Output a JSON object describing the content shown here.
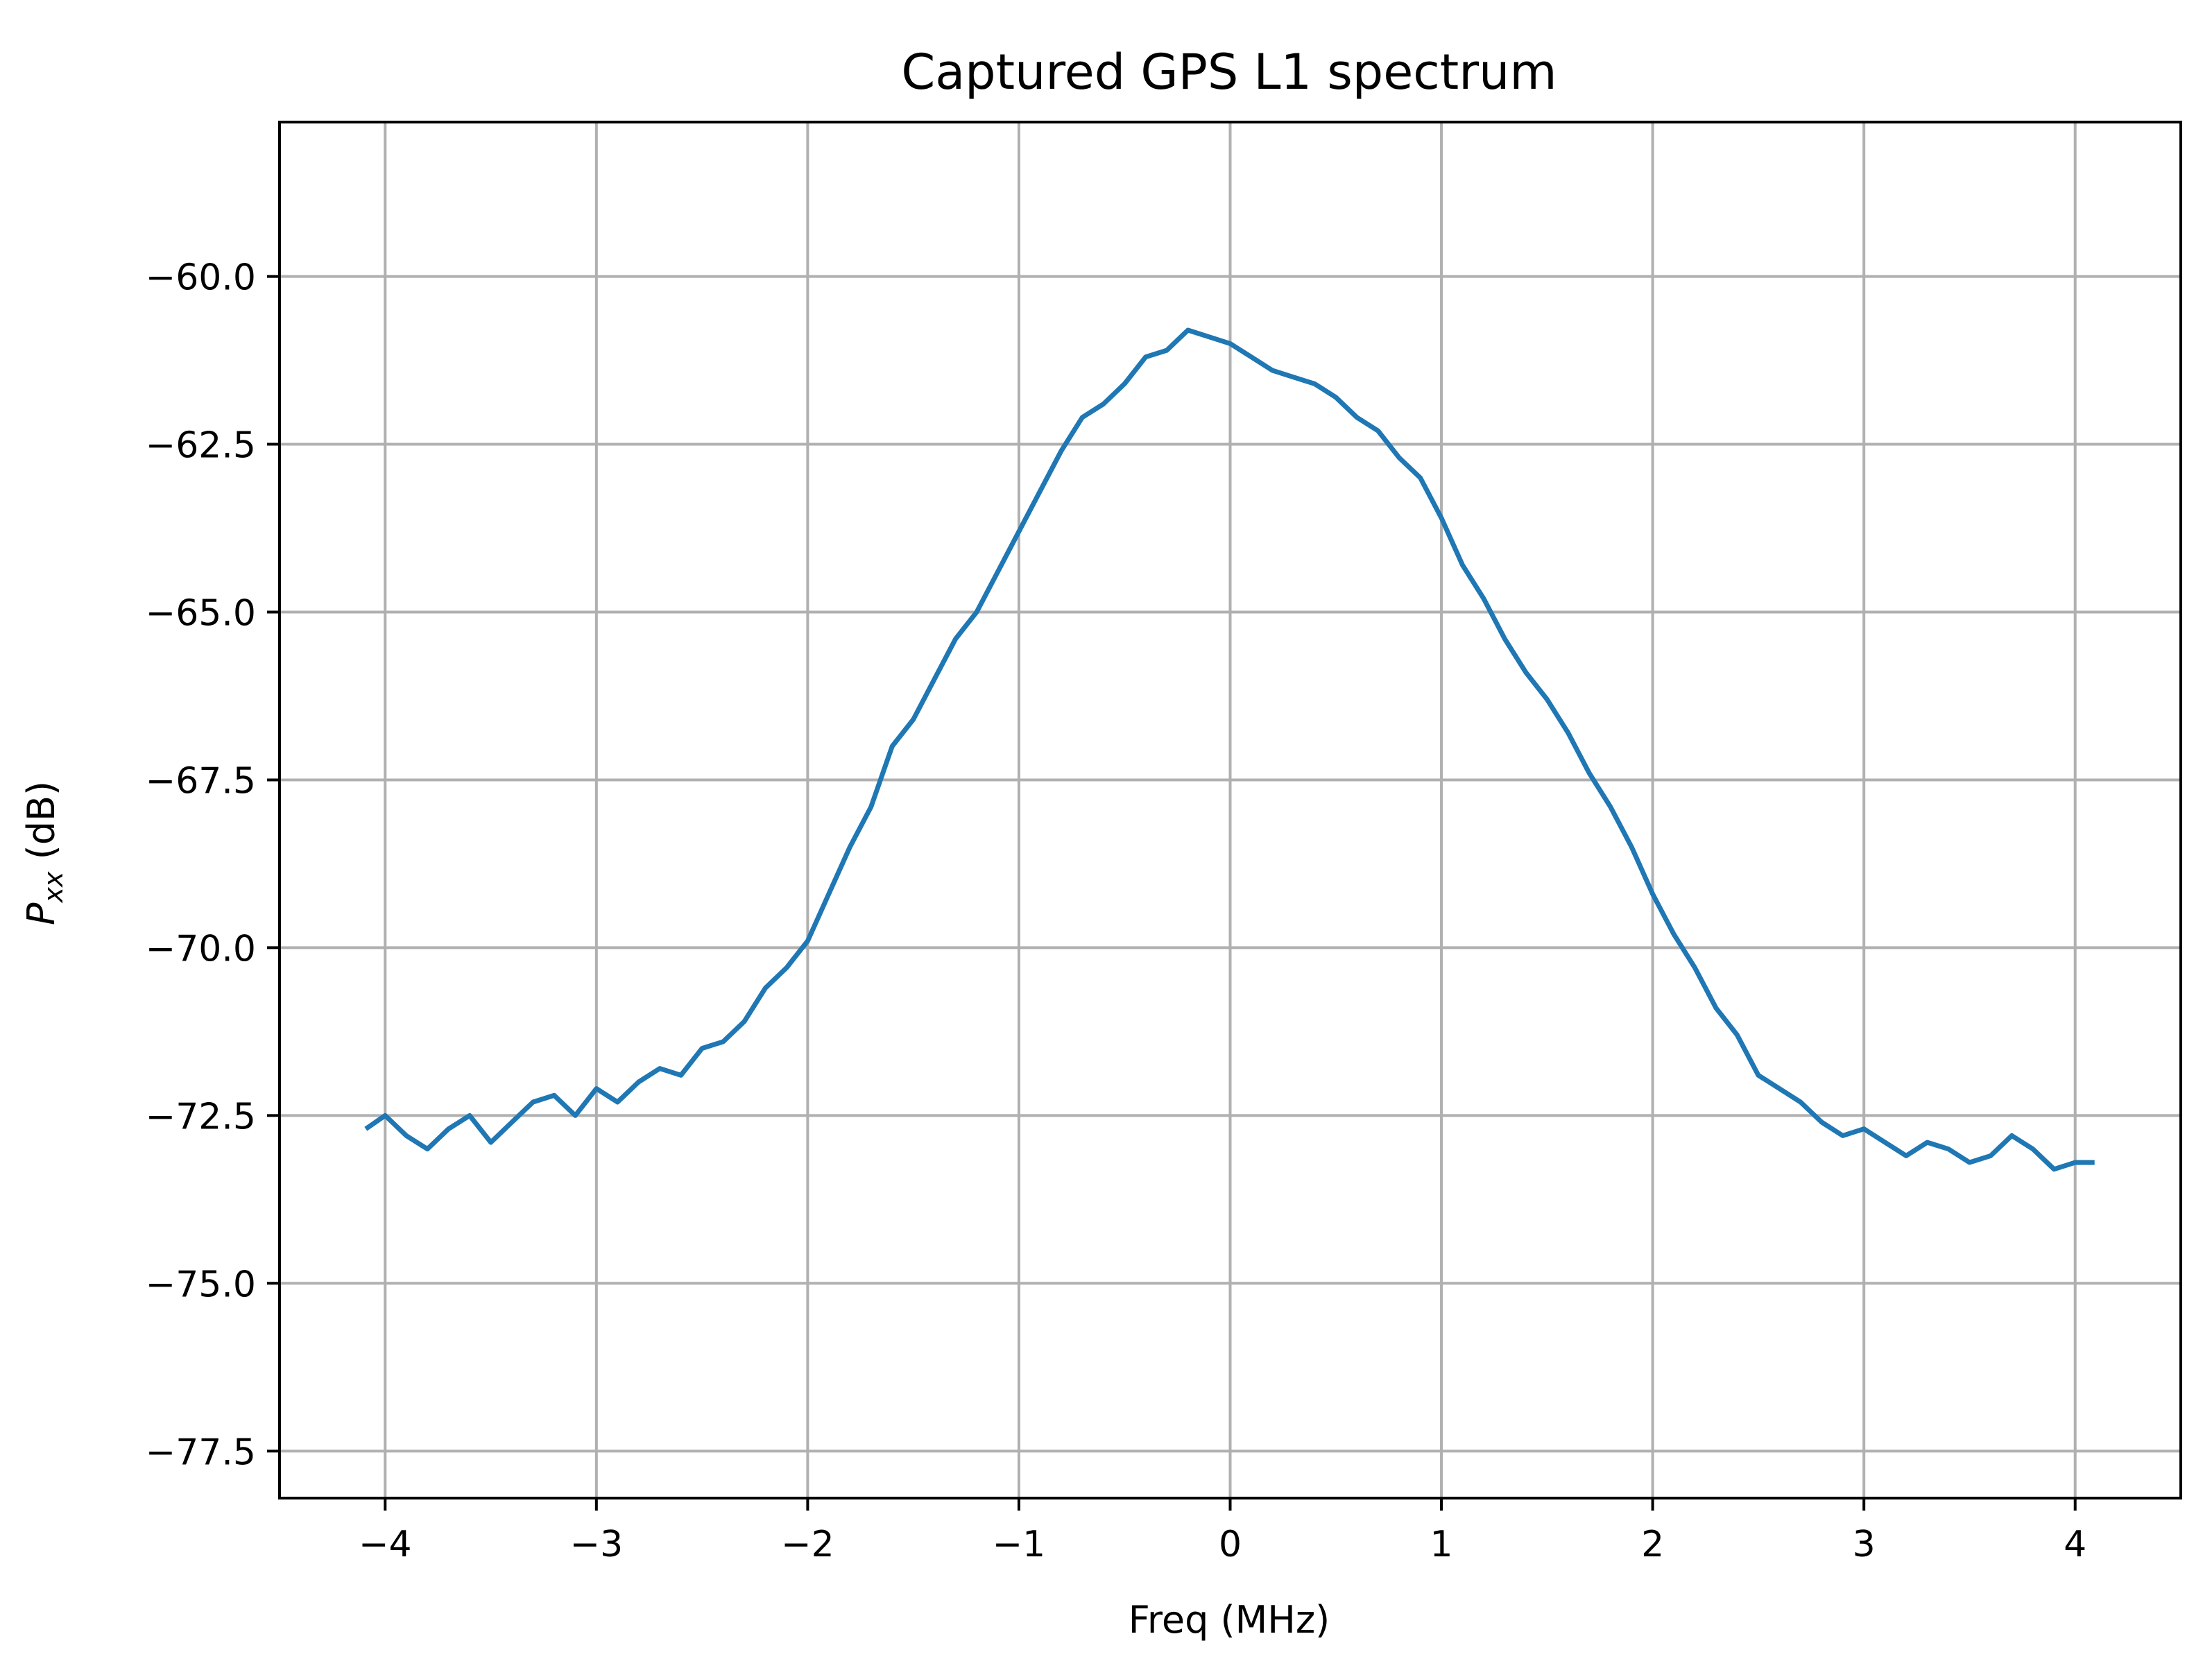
{
  "chart_data": {
    "type": "line",
    "title": "Captured GPS L1 spectrum",
    "xlabel": "Freq (MHz)",
    "ylabel_main": "P",
    "ylabel_subscript": "xx",
    "ylabel_unit": " (dB)",
    "xlim": [
      -4.5,
      4.5
    ],
    "ylim": [
      -78.2,
      -57.7
    ],
    "xticks": [
      -4,
      -3,
      -2,
      -1,
      0,
      1,
      2,
      3,
      4
    ],
    "xtick_labels": [
      "−4",
      "−3",
      "−2",
      "−1",
      "0",
      "1",
      "2",
      "3",
      "4"
    ],
    "yticks": [
      -60.0,
      -62.5,
      -65.0,
      -67.5,
      -70.0,
      -72.5,
      -75.0,
      -77.5
    ],
    "ytick_labels": [
      "−60.0",
      "−62.5",
      "−65.0",
      "−67.5",
      "−70.0",
      "−72.5",
      "−75.0",
      "−77.5"
    ],
    "grid": true,
    "line_color": "#1f77b4",
    "series": [
      {
        "x": [
          -4.092,
          -4.0,
          -3.9,
          -3.8,
          -3.7,
          -3.6,
          -3.5,
          -3.4,
          -3.3,
          -3.2,
          -3.1,
          -3.0,
          -2.9,
          -2.8,
          -2.7,
          -2.6,
          -2.5,
          -2.4,
          -2.3,
          -2.2,
          -2.1,
          -2.0,
          -1.9,
          -1.8,
          -1.7,
          -1.6,
          -1.5,
          -1.4,
          -1.3,
          -1.2,
          -1.1,
          -1.0,
          -0.9,
          -0.8,
          -0.7,
          -0.6,
          -0.5,
          -0.4,
          -0.3,
          -0.2,
          -0.1,
          0.0,
          0.1,
          0.2,
          0.3,
          0.4,
          0.5,
          0.6,
          0.7,
          0.8,
          0.9,
          1.0,
          1.1,
          1.2,
          1.3,
          1.4,
          1.5,
          1.6,
          1.7,
          1.8,
          1.9,
          2.0,
          2.1,
          2.2,
          2.3,
          2.4,
          2.5,
          2.6,
          2.7,
          2.8,
          2.9,
          3.0,
          3.1,
          3.2,
          3.3,
          3.4,
          3.5,
          3.6,
          3.7,
          3.8,
          3.9,
          4.0,
          4.092
        ],
        "y": [
          -72.7,
          -72.5,
          -72.8,
          -73.0,
          -72.7,
          -72.5,
          -72.9,
          -72.6,
          -72.3,
          -72.2,
          -72.5,
          -72.1,
          -72.3,
          -72.0,
          -71.8,
          -71.9,
          -71.5,
          -71.4,
          -71.1,
          -70.6,
          -70.3,
          -69.9,
          -69.2,
          -68.5,
          -67.9,
          -67.0,
          -66.6,
          -66.0,
          -65.4,
          -65.0,
          -64.4,
          -63.8,
          -63.2,
          -62.6,
          -62.1,
          -61.9,
          -61.6,
          -61.2,
          -61.1,
          -60.8,
          -60.9,
          -61.0,
          -61.2,
          -61.4,
          -61.5,
          -61.6,
          -61.8,
          -62.1,
          -62.3,
          -62.7,
          -63.0,
          -63.6,
          -64.3,
          -64.8,
          -65.4,
          -65.9,
          -66.3,
          -66.8,
          -67.4,
          -67.9,
          -68.5,
          -69.2,
          -69.8,
          -70.3,
          -70.9,
          -71.3,
          -71.9,
          -72.1,
          -72.3,
          -72.6,
          -72.8,
          -72.7,
          -72.9,
          -73.1,
          -72.9,
          -73.0,
          -73.2,
          -73.1,
          -72.8,
          -73.0,
          -73.3,
          -73.2,
          -73.2
        ]
      }
    ]
  }
}
